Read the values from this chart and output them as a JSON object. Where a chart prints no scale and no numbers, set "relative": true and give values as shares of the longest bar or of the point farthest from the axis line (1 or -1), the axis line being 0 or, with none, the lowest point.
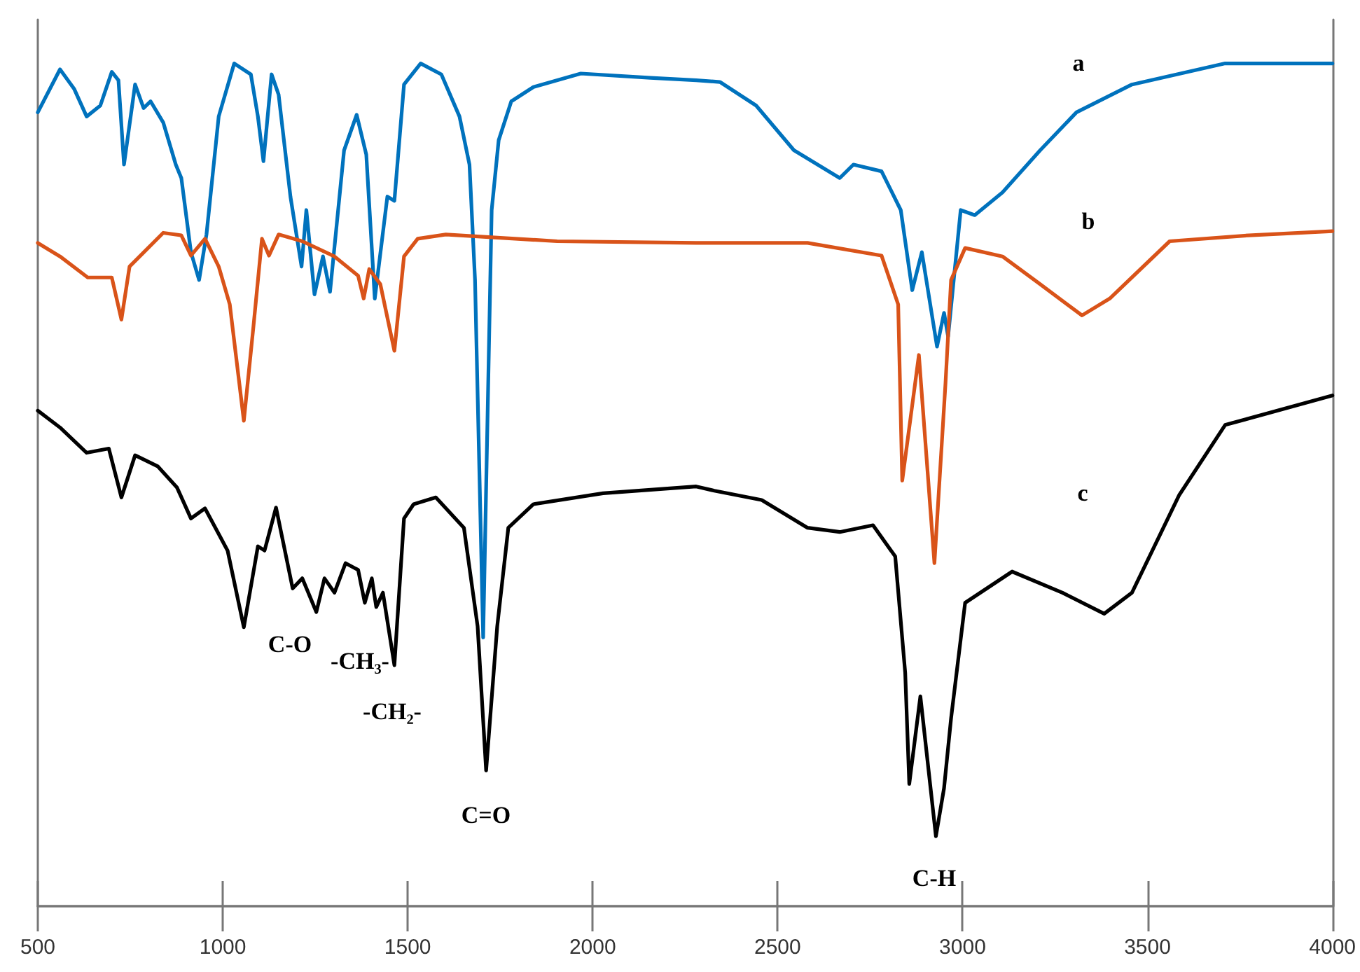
{
  "chart_data": {
    "type": "line",
    "relative": true,
    "grid": false,
    "marker": "none",
    "line_style": "solid",
    "tick_labels": "x",
    "xlim": [
      500,
      4000
    ],
    "xticks": [
      500,
      1000,
      1500,
      2000,
      2500,
      3000,
      3500,
      4000
    ],
    "annotations": [
      "a",
      "b",
      "c",
      "C-O",
      "-CH₃-",
      "-CH₂-",
      "C=O",
      "C-H"
    ],
    "series": [
      {
        "color": "#0072bd",
        "x": [
          500,
          560,
          598,
          632,
          669,
          700,
          718,
          733,
          763,
          786,
          805,
          839,
          873,
          888,
          914,
          936,
          956,
          989,
          1031,
          1076,
          1095,
          1110,
          1132,
          1151,
          1183,
          1213,
          1226,
          1248,
          1271,
          1290,
          1328,
          1362,
          1388,
          1411,
          1445,
          1464,
          1490,
          1535,
          1591,
          1640,
          1667,
          1682,
          1704,
          1727,
          1746,
          1780,
          1840,
          1968,
          2156,
          2280,
          2344,
          2442,
          2544,
          2668,
          2705,
          2781,
          2833,
          2864,
          2890,
          2931,
          2950,
          2961,
          2995,
          3033,
          3108,
          3210,
          3308,
          3458,
          3710,
          4000
        ],
        "values": [
          0.942,
          0.993,
          0.97,
          0.937,
          0.95,
          0.99,
          0.98,
          0.88,
          0.975,
          0.947,
          0.955,
          0.93,
          0.88,
          0.864,
          0.776,
          0.743,
          0.797,
          0.937,
          1.0,
          0.987,
          0.937,
          0.884,
          0.987,
          0.963,
          0.842,
          0.759,
          0.826,
          0.726,
          0.771,
          0.729,
          0.897,
          0.939,
          0.892,
          0.721,
          0.842,
          0.837,
          0.975,
          1.0,
          0.987,
          0.937,
          0.88,
          0.743,
          0.319,
          0.826,
          0.909,
          0.955,
          0.972,
          0.988,
          0.983,
          0.98,
          0.978,
          0.95,
          0.897,
          0.864,
          0.88,
          0.872,
          0.826,
          0.731,
          0.776,
          0.664,
          0.704,
          0.676,
          0.826,
          0.82,
          0.847,
          0.897,
          0.942,
          0.975,
          1.0,
          1.0
        ]
      },
      {
        "color": "#d95319",
        "x": [
          500,
          560,
          635,
          700,
          726,
          748,
          839,
          888,
          914,
          952,
          989,
          1019,
          1057,
          1083,
          1106,
          1125,
          1151,
          1215,
          1302,
          1366,
          1381,
          1396,
          1426,
          1464,
          1490,
          1527,
          1603,
          1904,
          2280,
          2581,
          2781,
          2826,
          2837,
          2882,
          2924,
          2954,
          2969,
          3007,
          3108,
          3210,
          3323,
          3398,
          3560,
          3774,
          4000
        ],
        "values": [
          0.787,
          0.771,
          0.746,
          0.746,
          0.696,
          0.759,
          0.799,
          0.796,
          0.772,
          0.792,
          0.759,
          0.714,
          0.576,
          0.688,
          0.792,
          0.772,
          0.797,
          0.789,
          0.771,
          0.748,
          0.721,
          0.756,
          0.738,
          0.659,
          0.771,
          0.792,
          0.797,
          0.789,
          0.787,
          0.787,
          0.772,
          0.714,
          0.505,
          0.654,
          0.407,
          0.621,
          0.743,
          0.781,
          0.771,
          0.738,
          0.701,
          0.721,
          0.789,
          0.796,
          0.801
        ]
      },
      {
        "color": "#000000",
        "x": [
          500,
          560,
          632,
          692,
          726,
          763,
          824,
          876,
          914,
          952,
          1013,
          1057,
          1095,
          1113,
          1144,
          1189,
          1215,
          1253,
          1275,
          1302,
          1332,
          1366,
          1384,
          1403,
          1415,
          1433,
          1464,
          1490,
          1516,
          1576,
          1652,
          1689,
          1712,
          1742,
          1772,
          1840,
          2028,
          2280,
          2329,
          2457,
          2581,
          2668,
          2758,
          2818,
          2845,
          2856,
          2886,
          2928,
          2950,
          2969,
          3007,
          3134,
          3270,
          3383,
          3458,
          3586,
          3710,
          4000
        ],
        "values": [
          0.588,
          0.568,
          0.538,
          0.543,
          0.485,
          0.535,
          0.522,
          0.497,
          0.46,
          0.472,
          0.422,
          0.331,
          0.427,
          0.422,
          0.473,
          0.377,
          0.389,
          0.349,
          0.389,
          0.372,
          0.407,
          0.399,
          0.36,
          0.389,
          0.355,
          0.372,
          0.286,
          0.46,
          0.477,
          0.485,
          0.449,
          0.332,
          0.161,
          0.332,
          0.449,
          0.477,
          0.49,
          0.498,
          0.493,
          0.482,
          0.449,
          0.444,
          0.452,
          0.415,
          0.277,
          0.145,
          0.249,
          0.083,
          0.14,
          0.223,
          0.36,
          0.397,
          0.372,
          0.347,
          0.372,
          0.488,
          0.571,
          0.606
        ]
      }
    ]
  }
}
